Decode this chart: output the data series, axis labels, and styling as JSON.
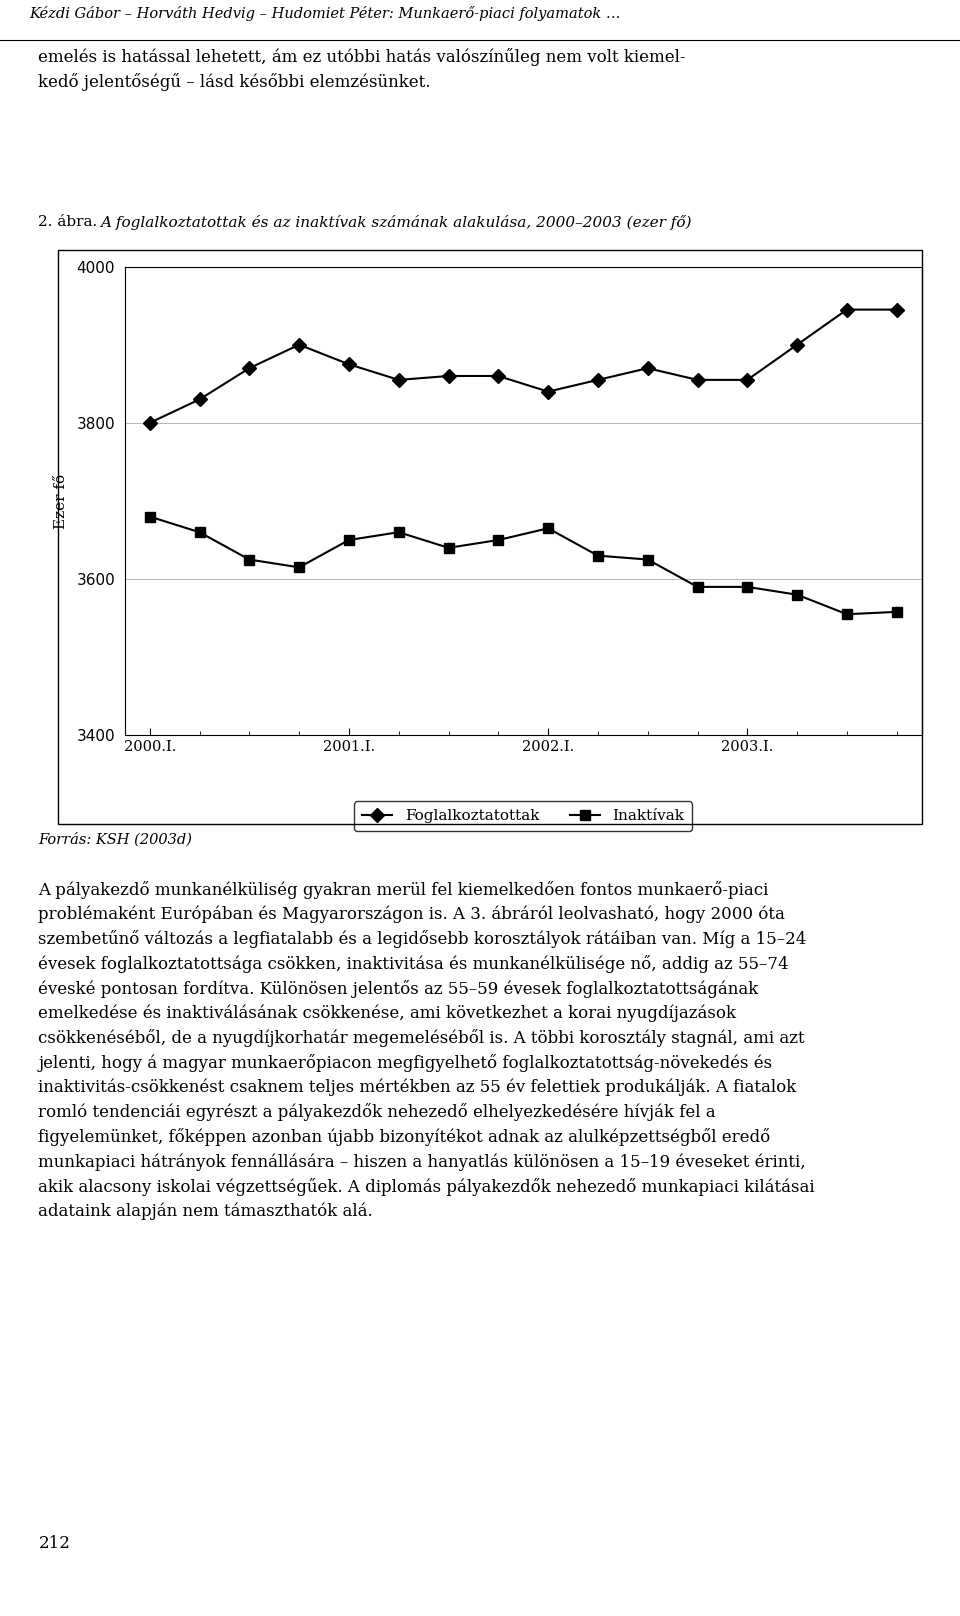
{
  "x_labels": [
    "2000.I.",
    "2001.I.",
    "2002.I.",
    "2003.I."
  ],
  "x_ticks_positions": [
    0,
    4,
    8,
    12
  ],
  "n_points": 16,
  "foglalkoztatottak": [
    3800,
    3830,
    3870,
    3900,
    3875,
    3855,
    3860,
    3860,
    3840,
    3855,
    3870,
    3855,
    3855,
    3900,
    3945,
    3945
  ],
  "inaktivak": [
    3680,
    3660,
    3625,
    3615,
    3650,
    3660,
    3640,
    3650,
    3665,
    3630,
    3625,
    3590,
    3590,
    3580,
    3555,
    3558
  ],
  "ylabel": "Ezer fő",
  "ylim": [
    3400,
    4000
  ],
  "yticks": [
    3400,
    3600,
    3800,
    4000
  ],
  "legend_foglalkoztatottak": "Foglalkoztatottak",
  "legend_inaktivak": "Inaktívak",
  "line_color": "#000000",
  "bg_color": "#ffffff",
  "marker_size": 7,
  "line_width": 1.5,
  "grid_color": "#aaaaaa",
  "box_color": "#000000",
  "title_prefix": "2. ábra.",
  "title_text": "A foglalkoztatottak és az inaktívak számának alakulása, 2000–2003 (ezer fő)",
  "header_text": "Kézdi Gábor – Horváth Hedvig – Hudomiet Péter: Munkaerő-piaci folyamatok …",
  "body_text1": "emelés is hatással lehetett, ám ez utóbbi hatás valószínűleg nem volt kiemel-\nkedő jelentőségű – lásd későbbi elemzésünket.",
  "footer_text": "Forrás: KSH (2003d)",
  "body_text2": "A pályakezdő munkanélküliség gyakran merül fel kiemelkedően fontos munkaerő-piaci problémaként Európában és Magyarországon is. A 3. ábráról leolvasható, hogy 2000 óta szembetűnő változás a legfiatalabb és a legidősebb korosztályok rátáiban van. Míg a 15–24 évesek foglalkoztatottsága csökken, inaktivitása és munkanélkülisége nő, addig az 55–74 éveské pontosan fordítva. Különösen jelentős az 55–59 évesek foglalkoztatottságának emelkedése és inaktiválásának csökkenése, ami következhet a korai nyugdíjazások csökkenéséből, de a nyugdíjkorhatár megemeléséből is. A többi korosztály stagnál, ami azt jelenti, hogy á magyar munkaerőpiacon megfigyelhető foglalkoztatottság-növekedés és inaktivitás-csökkenést csaknem teljes mértékben az 55 év felettiek produkálják. A fiatalok romló tendenciái egyrészt a pályakezdők nehezedő elhelyezkedésére hívják fel a figyelemünket, főképpen azonban újabb bizonyítékot adnak az alulképzettségből eredő munkapiaci hátrányok fennállására – hiszen a hanyatlás különösen a 15–19 éveseket érinti, akik alacsony iskolai végzettségűek. A diplomás pályakezdők nehezedő munkapiaci kilátásai adataink alapján nem támaszthatók alá.",
  "page_number": "212"
}
